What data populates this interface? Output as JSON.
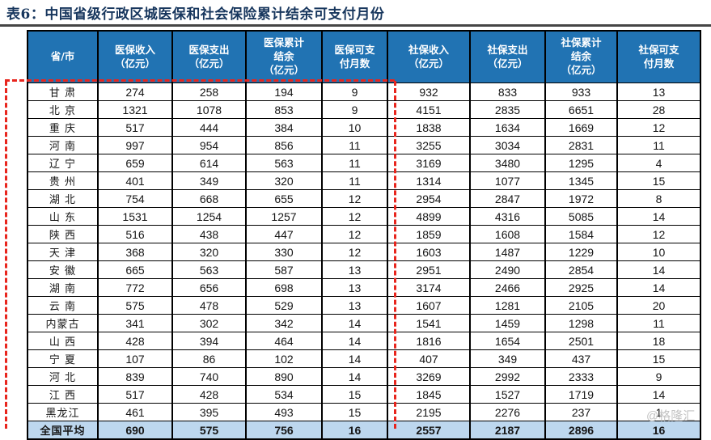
{
  "title": "表6：中国省级行政区城医保和社会保险累计结余可支付月份",
  "watermark": "@格隆汇",
  "colors": {
    "header_bg": "#2173b3",
    "header_text": "#ffffff",
    "total_row_bg": "#bdd7ee",
    "title_text": "#17365d",
    "dashed_annotation": "#e8251d",
    "grid_border": "#000000"
  },
  "table": {
    "headers": [
      "省/市",
      "医保收入\n（亿元）",
      "医保支出\n（亿元）",
      "医保累计\n结余\n（亿元）",
      "医保可支\n付月数",
      "社保收入\n（亿元）",
      "社保支出\n（亿元）",
      "社保累计\n结余\n（亿元）",
      "社保可支\n付月数"
    ],
    "rows": [
      {
        "name": "甘 肃",
        "values": [
          274,
          258,
          194,
          9,
          932,
          833,
          933,
          13
        ]
      },
      {
        "name": "北 京",
        "values": [
          1321,
          1078,
          853,
          9,
          4151,
          2835,
          6651,
          28
        ]
      },
      {
        "name": "重 庆",
        "values": [
          517,
          444,
          384,
          10,
          1838,
          1634,
          1669,
          12
        ]
      },
      {
        "name": "河 南",
        "values": [
          997,
          954,
          856,
          11,
          3255,
          3034,
          2831,
          11
        ]
      },
      {
        "name": "辽 宁",
        "values": [
          659,
          614,
          563,
          11,
          3169,
          3480,
          1295,
          4
        ]
      },
      {
        "name": "贵 州",
        "values": [
          401,
          349,
          320,
          11,
          1314,
          1077,
          1345,
          15
        ]
      },
      {
        "name": "湖 北",
        "values": [
          754,
          668,
          655,
          12,
          2954,
          2847,
          1972,
          8
        ]
      },
      {
        "name": "山 东",
        "values": [
          1531,
          1254,
          1257,
          12,
          4899,
          4316,
          5085,
          14
        ]
      },
      {
        "name": "陕 西",
        "values": [
          516,
          438,
          447,
          12,
          1859,
          1608,
          1584,
          12
        ]
      },
      {
        "name": "天 津",
        "values": [
          368,
          320,
          330,
          12,
          1603,
          1487,
          1229,
          10
        ]
      },
      {
        "name": "安 徽",
        "values": [
          665,
          563,
          587,
          13,
          2951,
          2490,
          2854,
          14
        ]
      },
      {
        "name": "湖 南",
        "values": [
          772,
          656,
          698,
          13,
          3174,
          2466,
          2925,
          14
        ]
      },
      {
        "name": "云 南",
        "values": [
          575,
          478,
          529,
          13,
          1607,
          1281,
          2105,
          20
        ]
      },
      {
        "name": "内蒙古",
        "values": [
          341,
          302,
          342,
          14,
          1541,
          1459,
          1298,
          11
        ]
      },
      {
        "name": "山 西",
        "values": [
          428,
          394,
          464,
          14,
          1816,
          1654,
          2501,
          18
        ]
      },
      {
        "name": "宁 夏",
        "values": [
          107,
          86,
          102,
          14,
          407,
          349,
          437,
          15
        ]
      },
      {
        "name": "河 北",
        "values": [
          839,
          740,
          890,
          14,
          3269,
          2992,
          2333,
          9
        ]
      },
      {
        "name": "江 西",
        "values": [
          517,
          428,
          534,
          15,
          1845,
          1527,
          1719,
          14
        ]
      },
      {
        "name": "黑龙江",
        "values": [
          461,
          395,
          493,
          15,
          2195,
          2276,
          237,
          1
        ]
      },
      {
        "name": "全国平均",
        "values": [
          690,
          575,
          756,
          16,
          2557,
          2187,
          2896,
          16
        ],
        "is_total": true
      }
    ]
  }
}
